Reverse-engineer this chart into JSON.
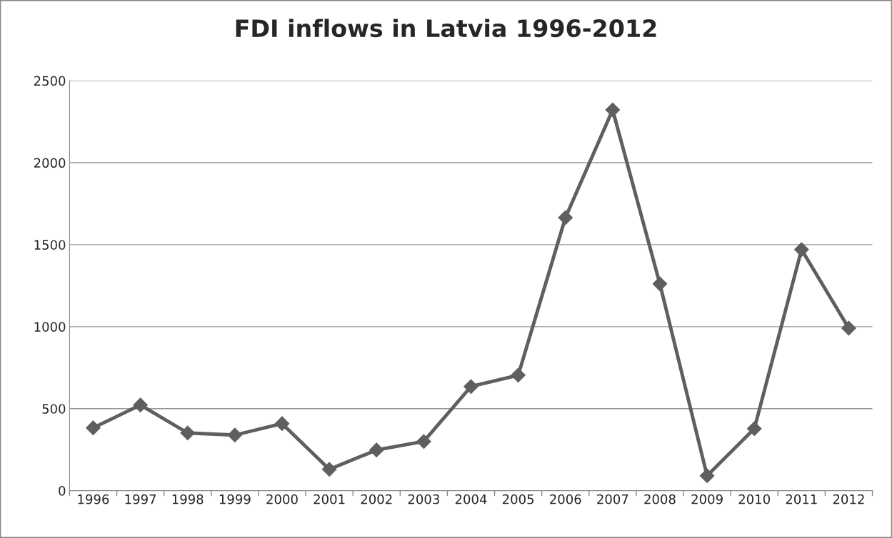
{
  "chart_data": {
    "type": "line",
    "title": "FDI inflows in Latvia 1996-2012",
    "categories": [
      "1996",
      "1997",
      "1998",
      "1999",
      "2000",
      "2001",
      "2002",
      "2003",
      "2004",
      "2005",
      "2006",
      "2007",
      "2008",
      "2009",
      "2010",
      "2011",
      "2012"
    ],
    "series": [
      {
        "color": "#5f5f5f",
        "values": [
          383,
          522,
          352,
          339,
          409,
          130,
          248,
          300,
          635,
          704,
          1665,
          2322,
          1261,
          91,
          378,
          1470,
          991
        ]
      }
    ],
    "ylim": [
      0,
      2500
    ],
    "yticks": [
      0,
      500,
      1000,
      1500,
      2000,
      2500
    ],
    "grid": "y",
    "marker": "diamond",
    "line_style": "solid",
    "legend": false
  }
}
